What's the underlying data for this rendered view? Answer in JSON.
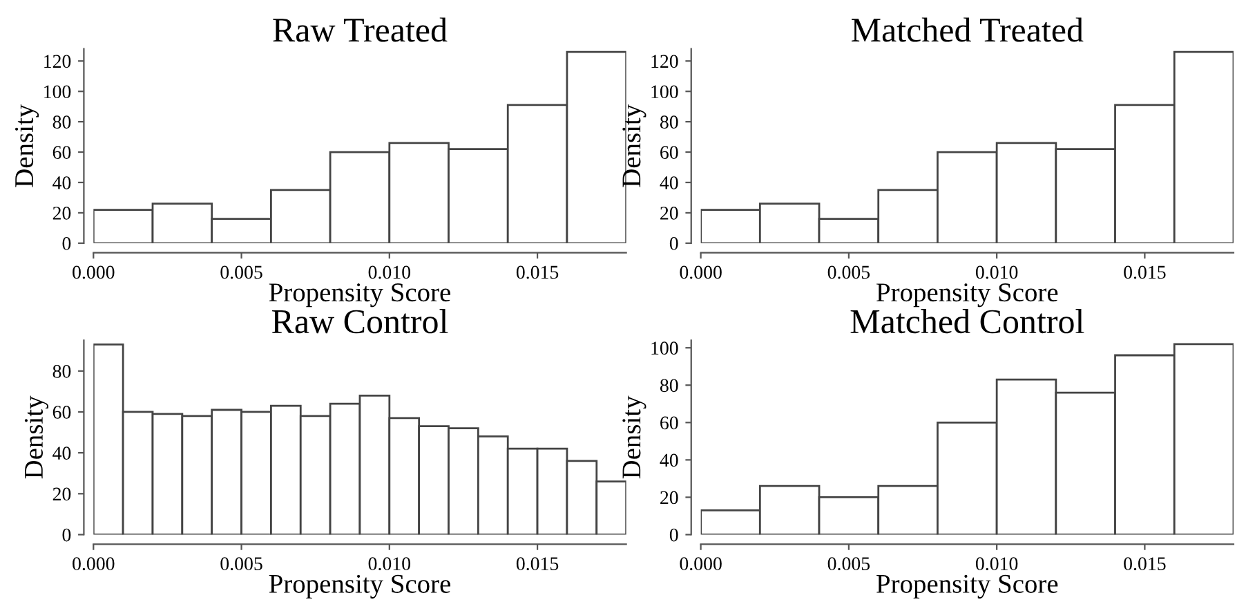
{
  "chart_data": [
    {
      "type": "histogram",
      "title": "Raw Treated",
      "xlabel": "Propensity Score",
      "ylabel": "Density",
      "bins": [
        0,
        0.002,
        0.004,
        0.006,
        0.008,
        0.01,
        0.012,
        0.014,
        0.016,
        0.018
      ],
      "values": [
        22,
        26,
        16,
        35,
        60,
        66,
        62,
        91,
        126
      ],
      "color": "#ffffff",
      "xlim": [
        0,
        0.018
      ],
      "ylim": [
        0,
        128
      ],
      "xticks": [
        {
          "value": 0,
          "label": "0.000"
        },
        {
          "value": 0.005,
          "label": "0.005"
        },
        {
          "value": 0.01,
          "label": "0.010"
        },
        {
          "value": 0.015,
          "label": "0.015"
        }
      ],
      "yticks": [
        0,
        20,
        40,
        60,
        80,
        100,
        120
      ],
      "grid": false
    },
    {
      "type": "histogram",
      "title": "Matched Treated",
      "xlabel": "Propensity Score",
      "ylabel": "Density",
      "bins": [
        0,
        0.002,
        0.004,
        0.006,
        0.008,
        0.01,
        0.012,
        0.014,
        0.016,
        0.018
      ],
      "values": [
        22,
        26,
        16,
        35,
        60,
        66,
        62,
        91,
        126
      ],
      "color": "#ffffff",
      "xlim": [
        0,
        0.018
      ],
      "ylim": [
        0,
        128
      ],
      "xticks": [
        {
          "value": 0,
          "label": "0.000"
        },
        {
          "value": 0.005,
          "label": "0.005"
        },
        {
          "value": 0.01,
          "label": "0.010"
        },
        {
          "value": 0.015,
          "label": "0.015"
        }
      ],
      "yticks": [
        0,
        20,
        40,
        60,
        80,
        100,
        120
      ],
      "grid": false
    },
    {
      "type": "histogram",
      "title": "Raw Control",
      "xlabel": "Propensity Score",
      "ylabel": "Density",
      "bins": [
        0,
        0.001,
        0.002,
        0.003,
        0.004,
        0.005,
        0.006,
        0.007,
        0.008,
        0.009,
        0.01,
        0.011,
        0.012,
        0.013,
        0.014,
        0.015,
        0.016,
        0.017,
        0.018
      ],
      "values": [
        93,
        60,
        59,
        58,
        61,
        60,
        63,
        58,
        64,
        68,
        57,
        53,
        52,
        48,
        42,
        42,
        36,
        26
      ],
      "color": "#ffffff",
      "xlim": [
        0,
        0.018
      ],
      "ylim": [
        0,
        95
      ],
      "xticks": [
        {
          "value": 0,
          "label": "0.000"
        },
        {
          "value": 0.005,
          "label": "0.005"
        },
        {
          "value": 0.01,
          "label": "0.010"
        },
        {
          "value": 0.015,
          "label": "0.015"
        }
      ],
      "yticks": [
        0,
        20,
        40,
        60,
        80
      ],
      "grid": false
    },
    {
      "type": "histogram",
      "title": "Matched Control",
      "xlabel": "Propensity Score",
      "ylabel": "Density",
      "bins": [
        0,
        0.002,
        0.004,
        0.006,
        0.008,
        0.01,
        0.012,
        0.014,
        0.016,
        0.018
      ],
      "values": [
        13,
        26,
        20,
        26,
        60,
        83,
        76,
        96,
        102
      ],
      "color": "#ffffff",
      "xlim": [
        0,
        0.018
      ],
      "ylim": [
        0,
        104
      ],
      "xticks": [
        {
          "value": 0,
          "label": "0.000"
        },
        {
          "value": 0.005,
          "label": "0.005"
        },
        {
          "value": 0.01,
          "label": "0.010"
        },
        {
          "value": 0.015,
          "label": "0.015"
        }
      ],
      "yticks": [
        0,
        20,
        40,
        60,
        80,
        100
      ],
      "grid": false
    }
  ]
}
